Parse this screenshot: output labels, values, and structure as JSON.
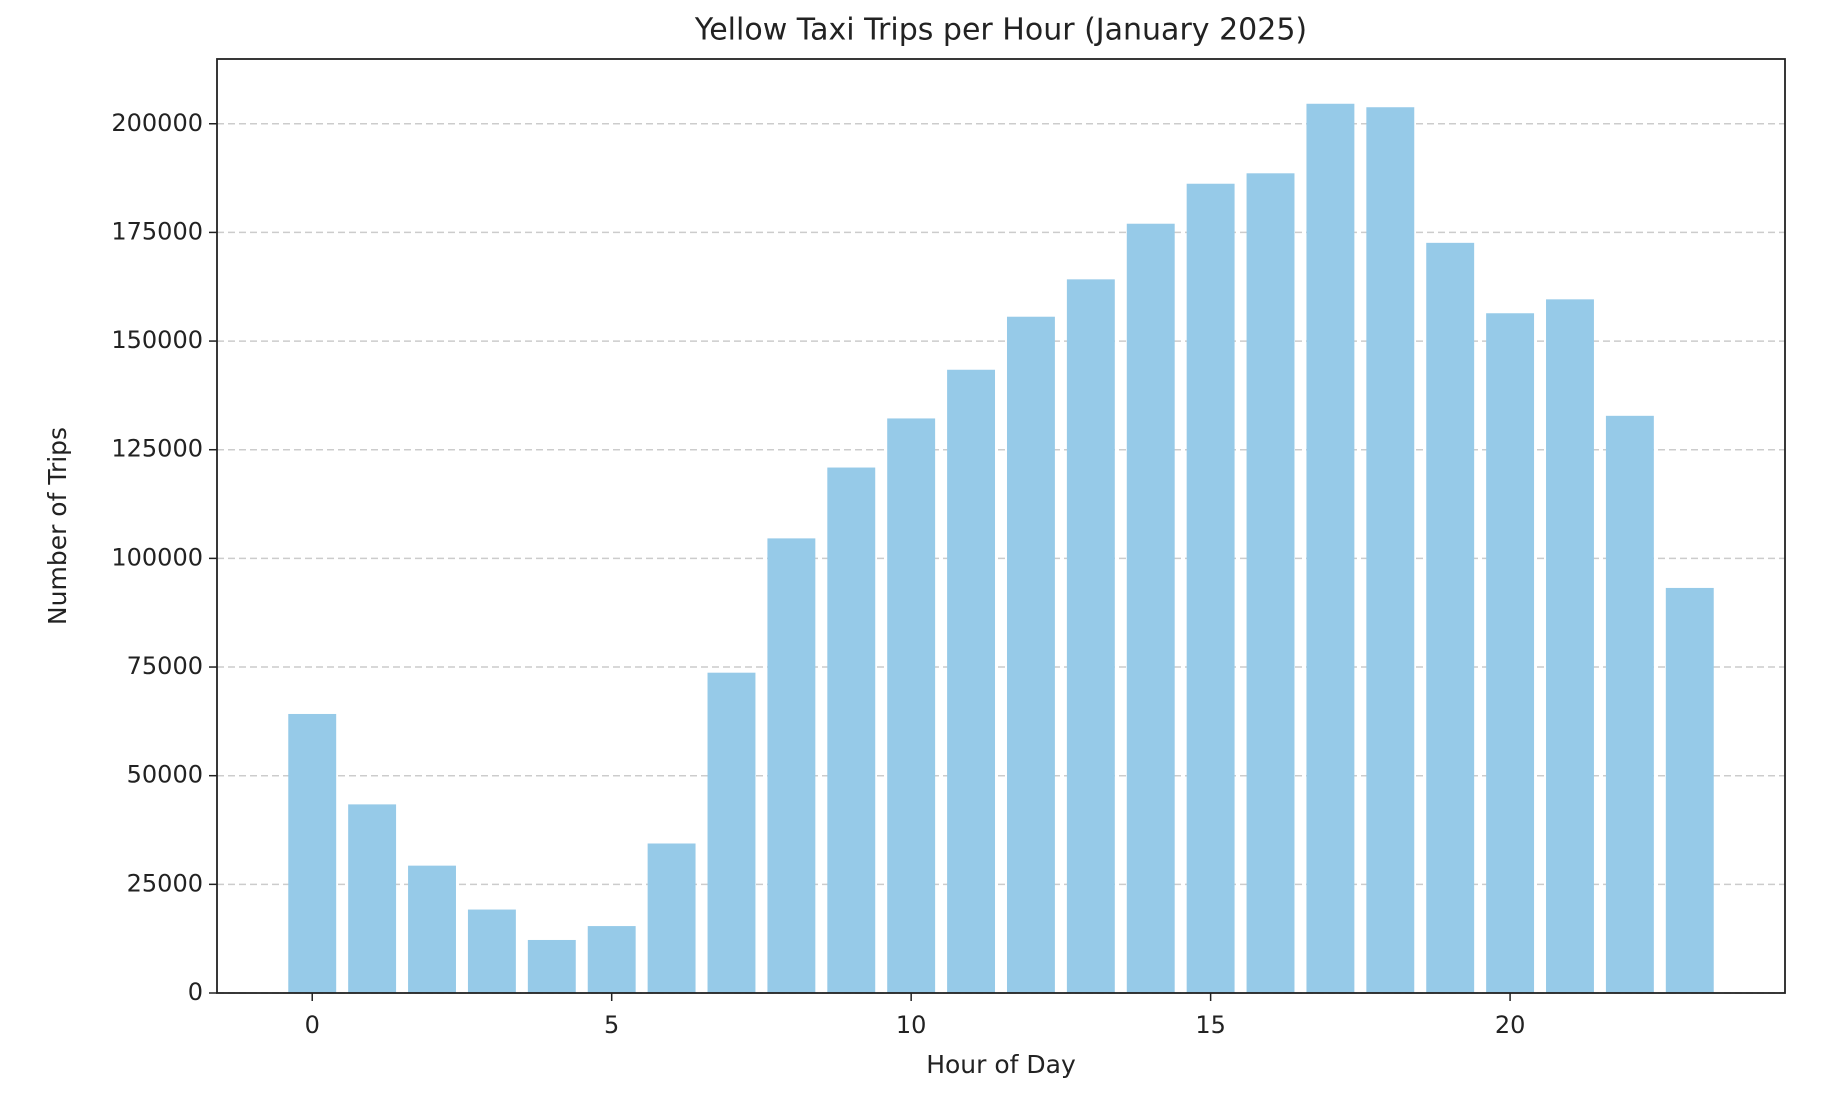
{
  "chart_data": {
    "type": "bar",
    "title": "Yellow Taxi Trips per Hour (January 2025)",
    "x_label": "Hour of Day",
    "y_label": "Number of Trips",
    "x": [
      0,
      1,
      2,
      3,
      4,
      5,
      6,
      7,
      8,
      9,
      10,
      11,
      12,
      13,
      14,
      15,
      16,
      17,
      18,
      19,
      20,
      21,
      22,
      23
    ],
    "values": [
      64200,
      43400,
      29300,
      19200,
      12200,
      15400,
      34400,
      73700,
      104600,
      120900,
      132200,
      143400,
      155600,
      164200,
      177000,
      186200,
      188600,
      204600,
      203800,
      172600,
      156400,
      159600,
      132800,
      93200
    ],
    "color": "#96cae8",
    "xlim": [
      -1.59,
      24.59
    ],
    "xticks": [
      0,
      5,
      10,
      15,
      20
    ],
    "ylim": [
      0,
      214900
    ],
    "yticks": [
      0,
      25000,
      50000,
      75000,
      100000,
      125000,
      150000,
      175000,
      200000
    ],
    "grid": true
  }
}
